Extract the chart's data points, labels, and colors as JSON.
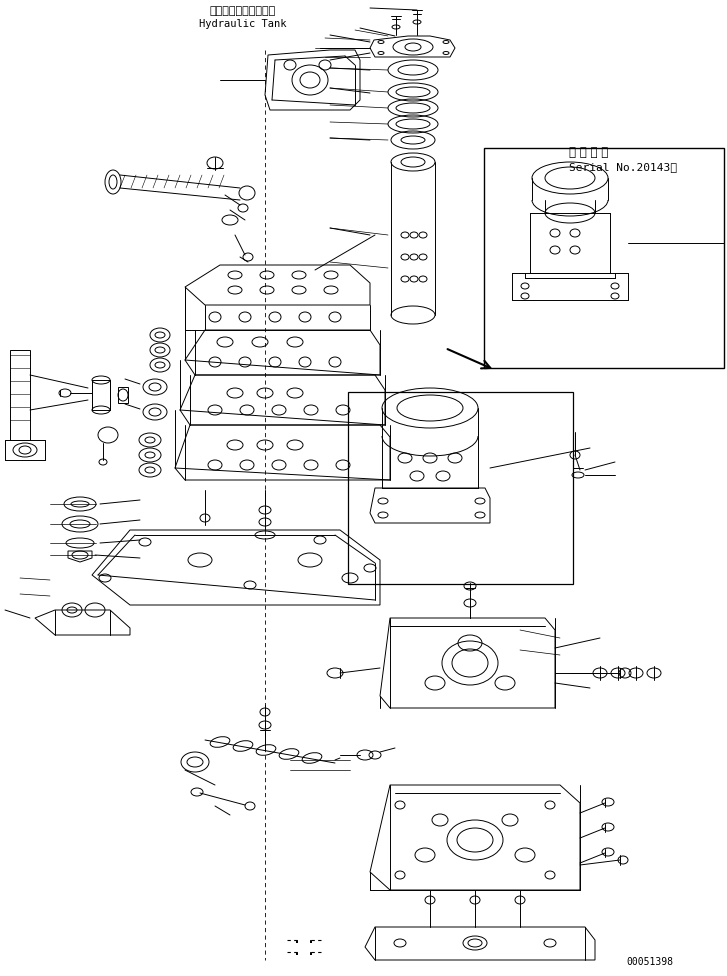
{
  "hydraulic_tank_label_jp": "ハイドロリックタンク",
  "hydraulic_tank_label_en": "Hydraulic Tank",
  "serial_label_jp": "適 用 号 機",
  "serial_label_en": "Serial No.20143～",
  "part_number": "00051398",
  "figsize": [
    7.27,
    9.76
  ],
  "dpi": 100,
  "background_color": "#ffffff",
  "line_color": "#000000"
}
